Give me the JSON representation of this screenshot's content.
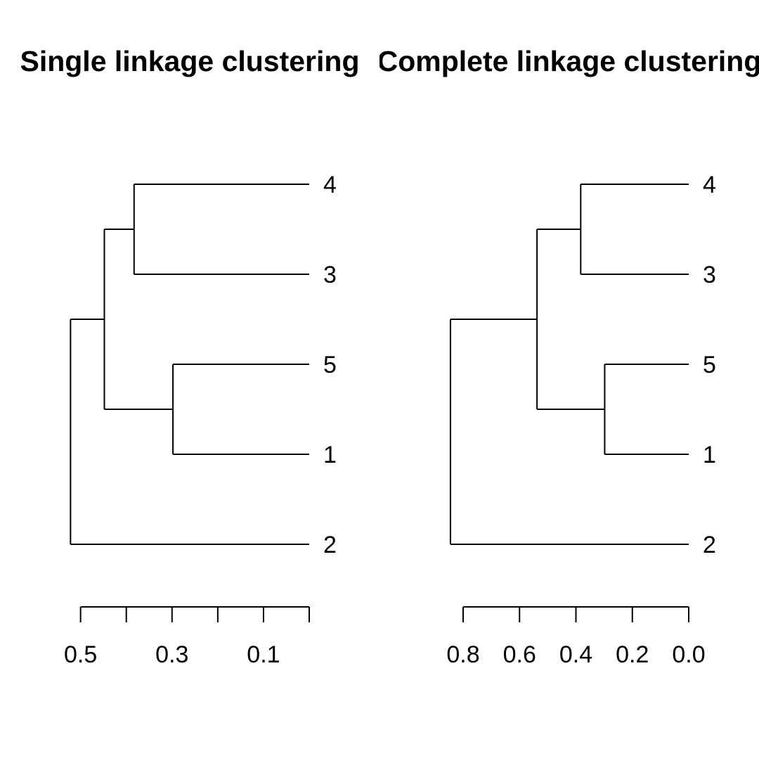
{
  "chart_data": [
    {
      "type": "dendrogram",
      "title": "Single linkage clustering",
      "orientation": "horizontal",
      "leaf_order": [
        "4",
        "3",
        "5",
        "1",
        "2"
      ],
      "merges": [
        {
          "id": "a",
          "children": [
            "5",
            "1"
          ],
          "height": 0.298
        },
        {
          "id": "b",
          "children": [
            "4",
            "3"
          ],
          "height": 0.383
        },
        {
          "id": "c",
          "children": [
            "b",
            "a"
          ],
          "height": 0.448
        },
        {
          "id": "d",
          "children": [
            "c",
            "2"
          ],
          "height": 0.522
        }
      ],
      "ticks": [
        0.5,
        0.4,
        0.3,
        0.2,
        0.1,
        0.0
      ],
      "tick_labels": [
        "0.5",
        "",
        "0.3",
        "",
        "0.1",
        ""
      ],
      "xlim": [
        0.5,
        0.0
      ]
    },
    {
      "type": "dendrogram",
      "title": "Complete linkage clustering",
      "orientation": "horizontal",
      "leaf_order": [
        "4",
        "3",
        "5",
        "1",
        "2"
      ],
      "merges": [
        {
          "id": "a",
          "children": [
            "5",
            "1"
          ],
          "height": 0.298
        },
        {
          "id": "b",
          "children": [
            "4",
            "3"
          ],
          "height": 0.383
        },
        {
          "id": "c",
          "children": [
            "b",
            "a"
          ],
          "height": 0.538
        },
        {
          "id": "d",
          "children": [
            "c",
            "2"
          ],
          "height": 0.845
        }
      ],
      "ticks": [
        0.8,
        0.6,
        0.4,
        0.2,
        0.0
      ],
      "tick_labels": [
        "0.8",
        "0.6",
        "0.4",
        "0.2",
        "0.0"
      ],
      "xlim": [
        0.8,
        0.0
      ]
    }
  ]
}
